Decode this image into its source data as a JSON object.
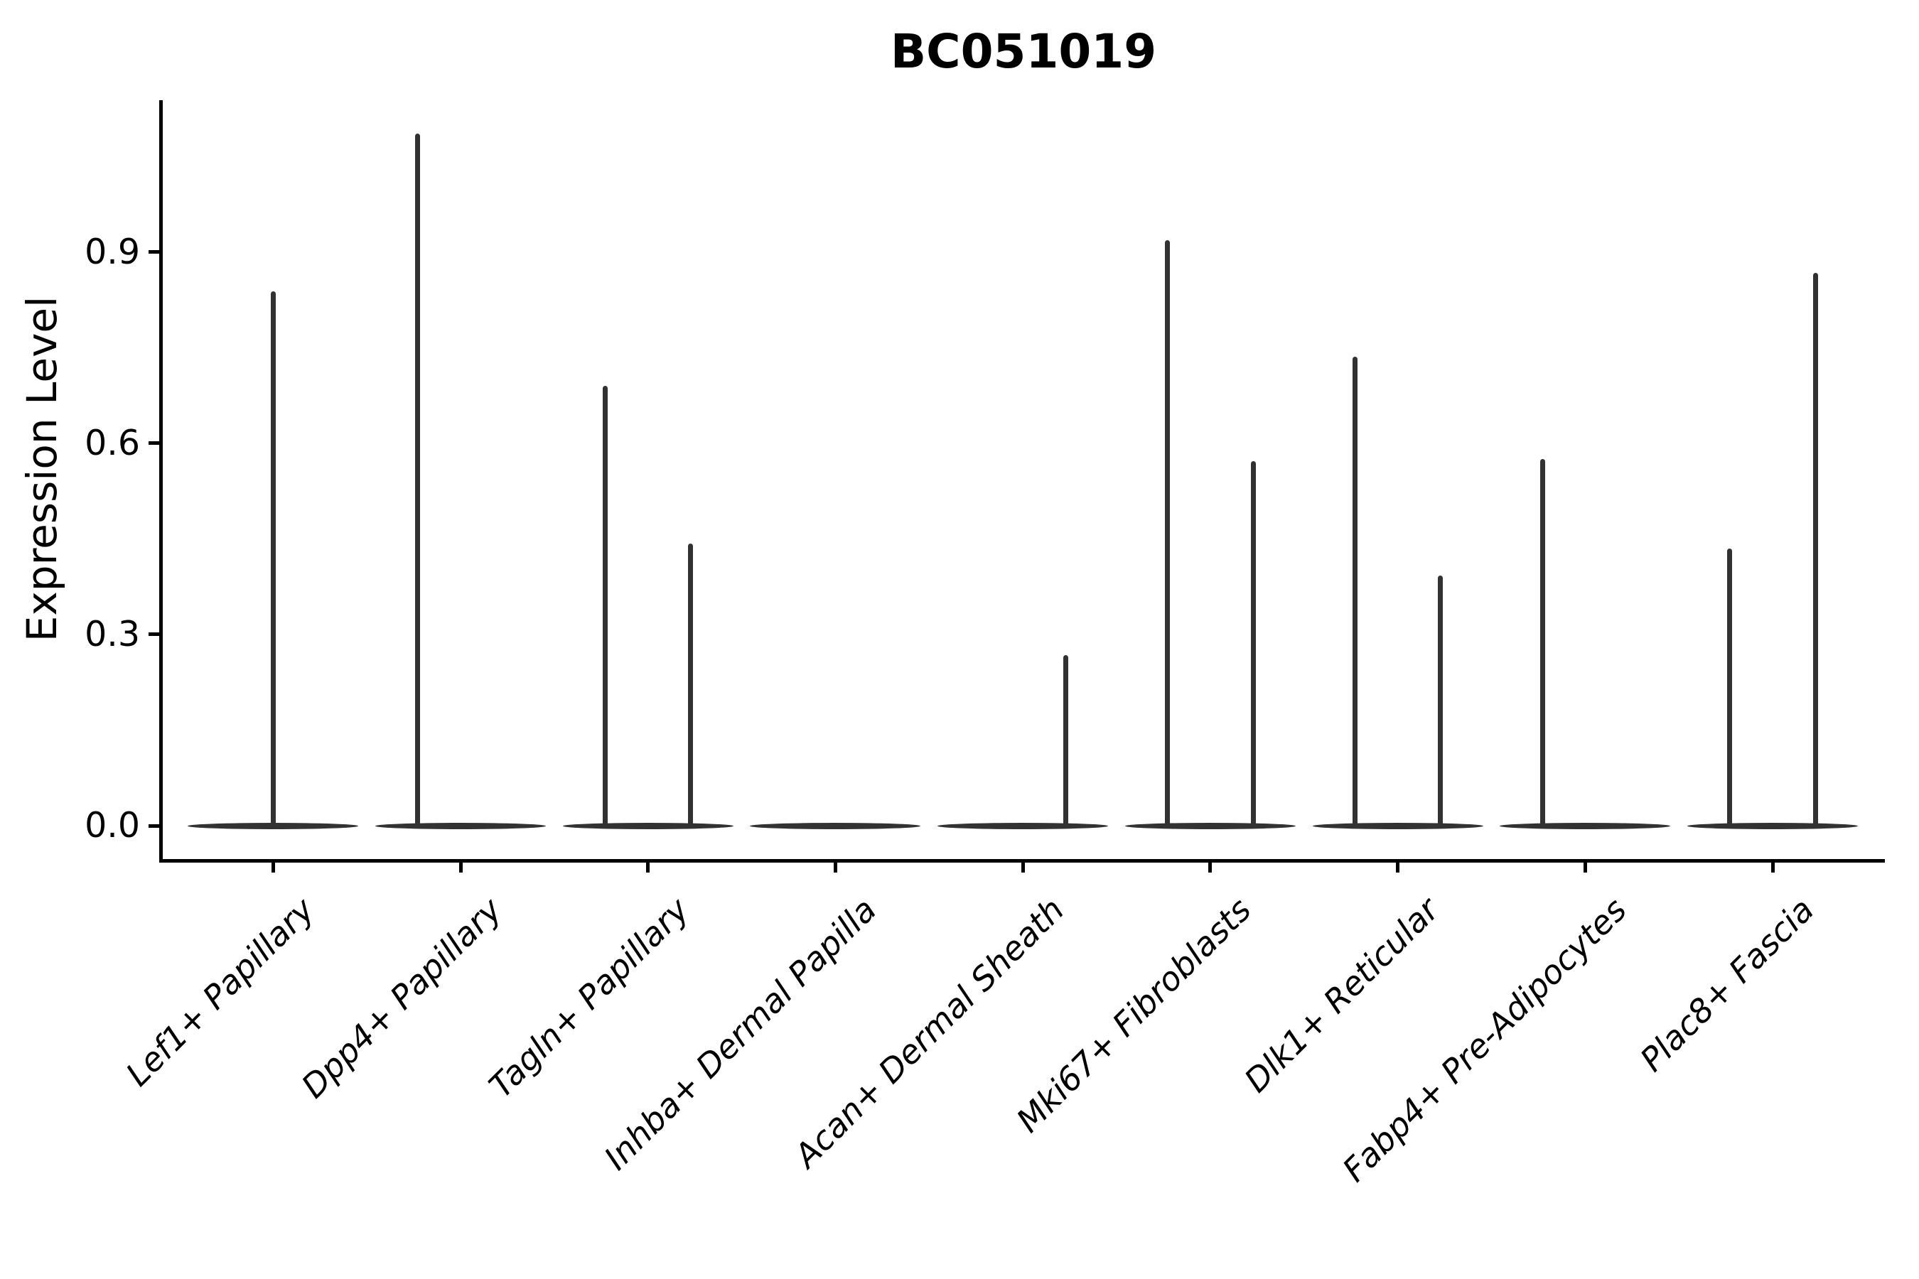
{
  "chart_data": {
    "type": "violin",
    "title": "BC051019",
    "xlabel": "",
    "ylabel": "Expression Level",
    "ytick_values": [
      0.0,
      0.3,
      0.6,
      0.9
    ],
    "ytick_labels": [
      "0.0",
      "0.3",
      "0.6",
      "0.9"
    ],
    "ylim": [
      -0.052,
      1.138
    ],
    "grid": false,
    "legend": "none",
    "ink_color": "#000000",
    "violin_color": "#323232",
    "categories": [
      "Lef1+ Papillary",
      "Dpp4+ Papillary",
      "Tagln+ Papillary",
      "Inhba+ Dermal Papilla",
      "Acan+ Dermal Sheath",
      "Mki67+ Fibroblasts",
      "Dlk1+ Reticular",
      "Fabp4+ Pre-Adipocytes",
      "Plac8+ Fascia"
    ],
    "series": [
      {
        "category": "Lef1+ Papillary",
        "spikes": [
          {
            "offset_frac": 0.0,
            "peak": 0.838
          }
        ]
      },
      {
        "category": "Dpp4+ Papillary",
        "spikes": [
          {
            "offset_frac": -0.228,
            "peak": 1.086
          }
        ]
      },
      {
        "category": "Tagln+ Papillary",
        "spikes": [
          {
            "offset_frac": -0.228,
            "peak": 0.69
          },
          {
            "offset_frac": 0.228,
            "peak": 0.443
          }
        ]
      },
      {
        "category": "Inhba+ Dermal Papilla",
        "spikes": []
      },
      {
        "category": "Acan+ Dermal Sheath",
        "spikes": [
          {
            "offset_frac": 0.228,
            "peak": 0.268
          }
        ]
      },
      {
        "category": "Mki67+ Fibroblasts",
        "spikes": [
          {
            "offset_frac": -0.228,
            "peak": 0.919
          },
          {
            "offset_frac": 0.228,
            "peak": 0.572
          }
        ]
      },
      {
        "category": "Dlk1+ Reticular",
        "spikes": [
          {
            "offset_frac": -0.228,
            "peak": 0.736
          },
          {
            "offset_frac": 0.228,
            "peak": 0.392
          }
        ]
      },
      {
        "category": "Fabp4+ Pre-Adipocytes",
        "spikes": [
          {
            "offset_frac": -0.228,
            "peak": 0.575
          }
        ]
      },
      {
        "category": "Plac8+ Fascia",
        "spikes": [
          {
            "offset_frac": -0.228,
            "peak": 0.435
          },
          {
            "offset_frac": 0.228,
            "peak": 0.867
          }
        ]
      }
    ],
    "base_width_frac": 0.91
  }
}
